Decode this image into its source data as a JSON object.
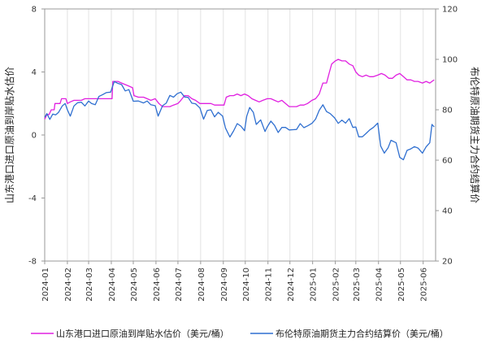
{
  "chart_data": {
    "type": "line",
    "title": "",
    "x_ticks": [
      "2024-01",
      "2024-02",
      "2024-03",
      "2024-04",
      "2024-05",
      "2024-06",
      "2024-07",
      "2024-08",
      "2024-09",
      "2024-10",
      "2024-11",
      "2024-12",
      "2025-01",
      "2025-02",
      "2025-03",
      "2025-04",
      "2025-05",
      "2025-06"
    ],
    "left_axis": {
      "label": "山东港口进口原油到岸贴水估价",
      "ylim": [
        -8,
        8
      ],
      "ticks": [
        "-8",
        "-4",
        "0",
        "4",
        "8"
      ]
    },
    "right_axis": {
      "label": "布伦特原油期货主力合约结算价",
      "ylim": [
        20,
        120
      ],
      "ticks": [
        "20",
        "40",
        "60",
        "80",
        "100",
        "120"
      ]
    },
    "grid": "vertical",
    "legend_position": "bottom",
    "series": [
      {
        "name": "山东港口进口原油到岸贴水估价（美元/桶）",
        "axis": "left",
        "color": "#E020E0",
        "points": [
          [
            "2024-01-01",
            1.0
          ],
          [
            "2024-01-04",
            1.3
          ],
          [
            "2024-01-07",
            1.3
          ],
          [
            "2024-01-10",
            1.6
          ],
          [
            "2024-01-14",
            1.6
          ],
          [
            "2024-01-15",
            2.0
          ],
          [
            "2024-01-22",
            2.0
          ],
          [
            "2024-01-24",
            2.3
          ],
          [
            "2024-01-30",
            2.3
          ],
          [
            "2024-02-01",
            2.0
          ],
          [
            "2024-02-05",
            2.1
          ],
          [
            "2024-02-10",
            2.2
          ],
          [
            "2024-02-15",
            2.2
          ],
          [
            "2024-02-20",
            2.2
          ],
          [
            "2024-02-25",
            2.3
          ],
          [
            "2024-03-01",
            2.3
          ],
          [
            "2024-03-05",
            2.3
          ],
          [
            "2024-03-10",
            2.3
          ],
          [
            "2024-03-15",
            2.3
          ],
          [
            "2024-03-20",
            2.3
          ],
          [
            "2024-03-25",
            2.3
          ],
          [
            "2024-03-30",
            2.3
          ],
          [
            "2024-04-02",
            2.3
          ],
          [
            "2024-04-03",
            3.4
          ],
          [
            "2024-04-10",
            3.4
          ],
          [
            "2024-04-15",
            3.3
          ],
          [
            "2024-04-20",
            3.2
          ],
          [
            "2024-04-25",
            3.1
          ],
          [
            "2024-04-30",
            3.0
          ],
          [
            "2024-05-02",
            2.5
          ],
          [
            "2024-05-08",
            2.4
          ],
          [
            "2024-05-15",
            2.4
          ],
          [
            "2024-05-20",
            2.3
          ],
          [
            "2024-05-25",
            2.2
          ],
          [
            "2024-05-31",
            2.3
          ],
          [
            "2024-06-05",
            2.0
          ],
          [
            "2024-06-10",
            1.8
          ],
          [
            "2024-06-15",
            1.8
          ],
          [
            "2024-06-20",
            1.8
          ],
          [
            "2024-06-25",
            1.9
          ],
          [
            "2024-07-01",
            2.0
          ],
          [
            "2024-07-05",
            2.2
          ],
          [
            "2024-07-10",
            2.5
          ],
          [
            "2024-07-15",
            2.5
          ],
          [
            "2024-07-20",
            2.3
          ],
          [
            "2024-07-25",
            2.2
          ],
          [
            "2024-07-31",
            2.0
          ],
          [
            "2024-08-05",
            2.0
          ],
          [
            "2024-08-10",
            2.0
          ],
          [
            "2024-08-15",
            2.0
          ],
          [
            "2024-08-20",
            1.9
          ],
          [
            "2024-08-25",
            1.9
          ],
          [
            "2024-08-31",
            1.9
          ],
          [
            "2024-09-02",
            1.9
          ],
          [
            "2024-09-05",
            2.4
          ],
          [
            "2024-09-10",
            2.5
          ],
          [
            "2024-09-15",
            2.5
          ],
          [
            "2024-09-20",
            2.6
          ],
          [
            "2024-09-25",
            2.5
          ],
          [
            "2024-09-30",
            2.6
          ],
          [
            "2024-10-05",
            2.5
          ],
          [
            "2024-10-10",
            2.3
          ],
          [
            "2024-10-15",
            2.2
          ],
          [
            "2024-10-20",
            2.1
          ],
          [
            "2024-10-25",
            2.2
          ],
          [
            "2024-10-31",
            2.3
          ],
          [
            "2024-11-05",
            2.3
          ],
          [
            "2024-11-10",
            2.2
          ],
          [
            "2024-11-15",
            2.1
          ],
          [
            "2024-11-20",
            2.2
          ],
          [
            "2024-11-25",
            2.0
          ],
          [
            "2024-11-30",
            1.8
          ],
          [
            "2024-12-05",
            1.8
          ],
          [
            "2024-12-10",
            1.8
          ],
          [
            "2024-12-15",
            1.9
          ],
          [
            "2024-12-20",
            1.9
          ],
          [
            "2024-12-25",
            2.0
          ],
          [
            "2024-12-31",
            2.2
          ],
          [
            "2025-01-05",
            2.3
          ],
          [
            "2025-01-10",
            2.6
          ],
          [
            "2025-01-15",
            3.3
          ],
          [
            "2025-01-20",
            3.3
          ],
          [
            "2025-01-24",
            4.0
          ],
          [
            "2025-01-27",
            4.5
          ],
          [
            "2025-02-01",
            4.7
          ],
          [
            "2025-02-05",
            4.8
          ],
          [
            "2025-02-10",
            4.7
          ],
          [
            "2025-02-15",
            4.7
          ],
          [
            "2025-02-20",
            4.5
          ],
          [
            "2025-02-25",
            4.4
          ],
          [
            "2025-03-01",
            4.0
          ],
          [
            "2025-03-05",
            3.8
          ],
          [
            "2025-03-10",
            3.7
          ],
          [
            "2025-03-15",
            3.8
          ],
          [
            "2025-03-20",
            3.7
          ],
          [
            "2025-03-25",
            3.7
          ],
          [
            "2025-03-31",
            3.8
          ],
          [
            "2025-04-05",
            3.9
          ],
          [
            "2025-04-10",
            3.8
          ],
          [
            "2025-04-15",
            3.6
          ],
          [
            "2025-04-20",
            3.6
          ],
          [
            "2025-04-25",
            3.8
          ],
          [
            "2025-04-30",
            3.9
          ],
          [
            "2025-05-05",
            3.7
          ],
          [
            "2025-05-10",
            3.5
          ],
          [
            "2025-05-15",
            3.5
          ],
          [
            "2025-05-20",
            3.4
          ],
          [
            "2025-05-25",
            3.4
          ],
          [
            "2025-05-31",
            3.3
          ],
          [
            "2025-06-05",
            3.4
          ],
          [
            "2025-06-10",
            3.3
          ],
          [
            "2025-06-16",
            3.5
          ]
        ]
      },
      {
        "name": "布伦特原油期货主力合约结算价（美元/桶）",
        "axis": "right",
        "color": "#2F6FD0",
        "points": [
          [
            "2024-01-01",
            77.0
          ],
          [
            "2024-01-04",
            78.5
          ],
          [
            "2024-01-08",
            76.2
          ],
          [
            "2024-01-12",
            78.3
          ],
          [
            "2024-01-16",
            78.0
          ],
          [
            "2024-01-20",
            79.0
          ],
          [
            "2024-01-25",
            81.5
          ],
          [
            "2024-01-29",
            82.5
          ],
          [
            "2024-02-01",
            80.0
          ],
          [
            "2024-02-05",
            77.5
          ],
          [
            "2024-02-10",
            81.5
          ],
          [
            "2024-02-15",
            82.8
          ],
          [
            "2024-02-20",
            83.0
          ],
          [
            "2024-02-25",
            81.5
          ],
          [
            "2024-03-01",
            83.5
          ],
          [
            "2024-03-05",
            82.5
          ],
          [
            "2024-03-10",
            82.0
          ],
          [
            "2024-03-15",
            85.3
          ],
          [
            "2024-03-20",
            86.0
          ],
          [
            "2024-03-25",
            86.8
          ],
          [
            "2024-03-31",
            87.0
          ],
          [
            "2024-04-05",
            91.2
          ],
          [
            "2024-04-10",
            90.5
          ],
          [
            "2024-04-15",
            90.0
          ],
          [
            "2024-04-20",
            87.5
          ],
          [
            "2024-04-25",
            88.0
          ],
          [
            "2024-05-01",
            83.4
          ],
          [
            "2024-05-08",
            83.5
          ],
          [
            "2024-05-15",
            82.7
          ],
          [
            "2024-05-20",
            83.5
          ],
          [
            "2024-05-25",
            82.0
          ],
          [
            "2024-05-31",
            81.6
          ],
          [
            "2024-06-04",
            77.5
          ],
          [
            "2024-06-10",
            81.6
          ],
          [
            "2024-06-15",
            82.6
          ],
          [
            "2024-06-20",
            85.7
          ],
          [
            "2024-06-25",
            85.0
          ],
          [
            "2024-06-30",
            86.4
          ],
          [
            "2024-07-05",
            87.0
          ],
          [
            "2024-07-10",
            85.1
          ],
          [
            "2024-07-15",
            84.9
          ],
          [
            "2024-07-20",
            82.6
          ],
          [
            "2024-07-25",
            82.4
          ],
          [
            "2024-07-31",
            80.7
          ],
          [
            "2024-08-05",
            76.3
          ],
          [
            "2024-08-10",
            79.7
          ],
          [
            "2024-08-15",
            80.0
          ],
          [
            "2024-08-20",
            77.2
          ],
          [
            "2024-08-25",
            79.0
          ],
          [
            "2024-08-31",
            77.5
          ],
          [
            "2024-09-04",
            72.7
          ],
          [
            "2024-09-10",
            69.2
          ],
          [
            "2024-09-15",
            71.6
          ],
          [
            "2024-09-20",
            74.5
          ],
          [
            "2024-09-25",
            73.5
          ],
          [
            "2024-09-30",
            71.7
          ],
          [
            "2024-10-03",
            77.5
          ],
          [
            "2024-10-07",
            80.9
          ],
          [
            "2024-10-12",
            79.0
          ],
          [
            "2024-10-16",
            74.2
          ],
          [
            "2024-10-22",
            76.0
          ],
          [
            "2024-10-28",
            71.4
          ],
          [
            "2024-10-31",
            73.2
          ],
          [
            "2024-11-05",
            75.5
          ],
          [
            "2024-11-10",
            73.8
          ],
          [
            "2024-11-15",
            71.0
          ],
          [
            "2024-11-20",
            73.0
          ],
          [
            "2024-11-25",
            73.0
          ],
          [
            "2024-11-30",
            72.0
          ],
          [
            "2024-12-05",
            72.1
          ],
          [
            "2024-12-10",
            72.2
          ],
          [
            "2024-12-15",
            74.5
          ],
          [
            "2024-12-20",
            72.9
          ],
          [
            "2024-12-25",
            73.6
          ],
          [
            "2024-12-31",
            74.6
          ],
          [
            "2025-01-05",
            76.3
          ],
          [
            "2025-01-10",
            79.8
          ],
          [
            "2025-01-15",
            82.0
          ],
          [
            "2025-01-20",
            79.3
          ],
          [
            "2025-01-25",
            78.5
          ],
          [
            "2025-01-31",
            76.8
          ],
          [
            "2025-02-05",
            74.6
          ],
          [
            "2025-02-10",
            75.9
          ],
          [
            "2025-02-15",
            74.7
          ],
          [
            "2025-02-20",
            76.5
          ],
          [
            "2025-02-25",
            73.0
          ],
          [
            "2025-03-01",
            73.2
          ],
          [
            "2025-03-05",
            69.3
          ],
          [
            "2025-03-10",
            69.3
          ],
          [
            "2025-03-15",
            70.6
          ],
          [
            "2025-03-20",
            72.0
          ],
          [
            "2025-03-25",
            73.0
          ],
          [
            "2025-03-31",
            74.7
          ],
          [
            "2025-04-04",
            65.6
          ],
          [
            "2025-04-09",
            62.8
          ],
          [
            "2025-04-14",
            64.9
          ],
          [
            "2025-04-18",
            67.9
          ],
          [
            "2025-04-25",
            66.9
          ],
          [
            "2025-04-30",
            61.1
          ],
          [
            "2025-05-05",
            60.2
          ],
          [
            "2025-05-10",
            63.9
          ],
          [
            "2025-05-15",
            64.5
          ],
          [
            "2025-05-20",
            65.4
          ],
          [
            "2025-05-25",
            64.8
          ],
          [
            "2025-05-31",
            62.8
          ],
          [
            "2025-06-05",
            65.3
          ],
          [
            "2025-06-10",
            66.9
          ],
          [
            "2025-06-13",
            74.2
          ],
          [
            "2025-06-16",
            73.2
          ]
        ]
      }
    ]
  }
}
